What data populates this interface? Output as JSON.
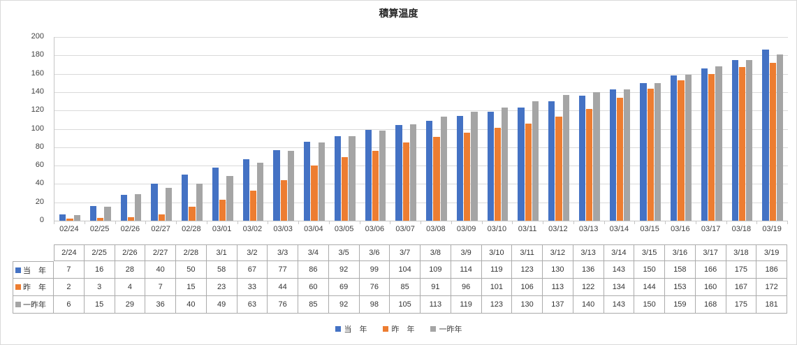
{
  "chart_data": {
    "type": "bar",
    "title": "積算温度",
    "xlabel": "",
    "ylabel": "",
    "ylim": [
      0,
      200
    ],
    "ytick_step": 20,
    "grid": true,
    "legend_position": "bottom",
    "categories": [
      "02/24",
      "02/25",
      "02/26",
      "02/27",
      "02/28",
      "03/01",
      "03/02",
      "03/03",
      "03/04",
      "03/05",
      "03/06",
      "03/07",
      "03/08",
      "03/09",
      "03/10",
      "03/11",
      "03/12",
      "03/13",
      "03/14",
      "03/15",
      "03/16",
      "03/17",
      "03/18",
      "03/19"
    ],
    "table_categories": [
      "2/24",
      "2/25",
      "2/26",
      "2/27",
      "2/28",
      "3/1",
      "3/2",
      "3/3",
      "3/4",
      "3/5",
      "3/6",
      "3/7",
      "3/8",
      "3/9",
      "3/10",
      "3/11",
      "3/12",
      "3/13",
      "3/14",
      "3/15",
      "3/16",
      "3/17",
      "3/18",
      "3/19"
    ],
    "series": [
      {
        "name": "当　年",
        "color": "#4472C4",
        "values": [
          7,
          16,
          28,
          40,
          50,
          58,
          67,
          77,
          86,
          92,
          99,
          104,
          109,
          114,
          119,
          123,
          130,
          136,
          143,
          150,
          158,
          166,
          175,
          186
        ]
      },
      {
        "name": "昨　年",
        "color": "#ED7D31",
        "values": [
          2,
          3,
          4,
          7,
          15,
          23,
          33,
          44,
          60,
          69,
          76,
          85,
          91,
          96,
          101,
          106,
          113,
          122,
          134,
          144,
          153,
          160,
          167,
          172
        ]
      },
      {
        "name": "一昨年",
        "color": "#A5A5A5",
        "values": [
          6,
          15,
          29,
          36,
          40,
          49,
          63,
          76,
          85,
          92,
          98,
          105,
          113,
          119,
          123,
          130,
          137,
          140,
          143,
          150,
          159,
          168,
          175,
          181
        ]
      }
    ]
  },
  "colors": {
    "gridline": "#d9d9d9",
    "axis": "#c6c6c6",
    "table_border": "#ababab",
    "frame": "#d9d9d9"
  }
}
